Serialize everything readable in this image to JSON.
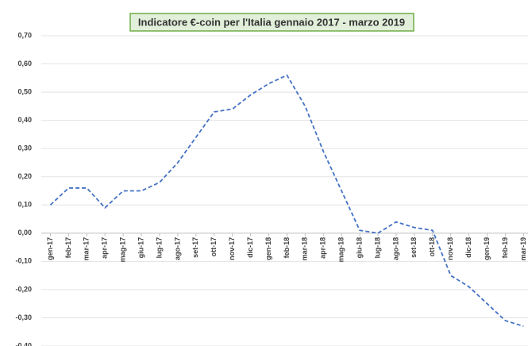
{
  "chart_data": {
    "type": "line",
    "title": "Indicatore €-coin per l'Italia gennaio 2017 - marzo 2019",
    "categories": [
      "gen-17",
      "feb-17",
      "mar-17",
      "apr-17",
      "mag-17",
      "giu-17",
      "lug-17",
      "ago-17",
      "set-17",
      "ott-17",
      "nov-17",
      "dic-17",
      "gen-18",
      "feb-18",
      "mar-18",
      "apr-18",
      "mag-18",
      "giu-18",
      "lug-18",
      "ago-18",
      "set-18",
      "ott-18",
      "nov-18",
      "dic-18",
      "gen-19",
      "feb-19",
      "mar-19"
    ],
    "series": [
      {
        "name": "€-coin",
        "color": "#4472c4",
        "values": [
          0.1,
          0.16,
          0.16,
          0.09,
          0.15,
          0.15,
          0.18,
          0.25,
          0.34,
          0.43,
          0.44,
          0.49,
          0.53,
          0.56,
          0.45,
          0.29,
          0.15,
          0.01,
          0.0,
          0.04,
          0.02,
          0.01,
          -0.15,
          -0.19,
          -0.25,
          -0.31,
          -0.33
        ]
      }
    ],
    "ylim": [
      -0.4,
      0.7
    ],
    "yticks": [
      {
        "value": -0.4,
        "label": "-0,40"
      },
      {
        "value": -0.3,
        "label": "-0,30"
      },
      {
        "value": -0.2,
        "label": "-0,20"
      },
      {
        "value": -0.1,
        "label": "-0,10"
      },
      {
        "value": 0,
        "label": "0,00"
      },
      {
        "value": 0.1,
        "label": "0,10"
      },
      {
        "value": 0.2,
        "label": "0,20"
      },
      {
        "value": 0.3,
        "label": "0,30"
      },
      {
        "value": 0.4,
        "label": "0,40"
      },
      {
        "value": 0.5,
        "label": "0,50"
      },
      {
        "value": 0.6,
        "label": "0,60"
      },
      {
        "value": 0.7,
        "label": "0,70"
      }
    ],
    "grid": true
  }
}
